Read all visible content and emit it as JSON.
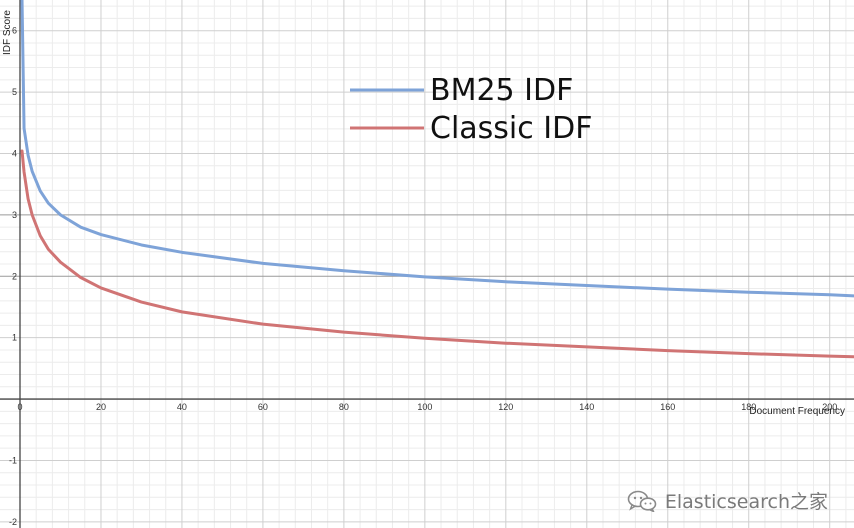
{
  "chart_data": {
    "type": "line",
    "title": "",
    "xlabel": "Document Frequency",
    "ylabel": "IDF Score",
    "xlim": [
      0,
      206
    ],
    "ylim": [
      -2.1,
      6.5
    ],
    "x_ticks": [
      "0",
      "20",
      "40",
      "60",
      "80",
      "100",
      "120",
      "140",
      "160",
      "180",
      "200"
    ],
    "y_ticks": [
      "-2",
      "-1",
      "1",
      "2",
      "3",
      "4",
      "5",
      "6"
    ],
    "grid": true,
    "legend_position": "top-center",
    "series": [
      {
        "name": "BM25 IDF",
        "color": "#7ea3d8",
        "x": [
          0.5,
          1,
          2,
          3,
          5,
          7,
          10,
          15,
          20,
          30,
          40,
          60,
          80,
          100,
          120,
          140,
          160,
          180,
          200,
          206
        ],
        "y": [
          6.5,
          4.41,
          3.97,
          3.71,
          3.39,
          3.19,
          3.0,
          2.8,
          2.68,
          2.51,
          2.39,
          2.21,
          2.09,
          1.99,
          1.91,
          1.85,
          1.79,
          1.74,
          1.7,
          1.68
        ]
      },
      {
        "name": "Classic IDF",
        "color": "#d07474",
        "x": [
          0.5,
          1,
          2,
          3,
          5,
          7,
          10,
          15,
          20,
          30,
          40,
          60,
          80,
          100,
          120,
          140,
          160,
          180,
          200,
          206
        ],
        "y": [
          4.04,
          3.7,
          3.26,
          3.0,
          2.66,
          2.44,
          2.23,
          1.98,
          1.81,
          1.58,
          1.42,
          1.22,
          1.09,
          0.99,
          0.91,
          0.85,
          0.79,
          0.74,
          0.7,
          0.69
        ]
      }
    ]
  },
  "watermark": {
    "text": "Elasticsearch之家",
    "icon": "wechat-icon"
  }
}
